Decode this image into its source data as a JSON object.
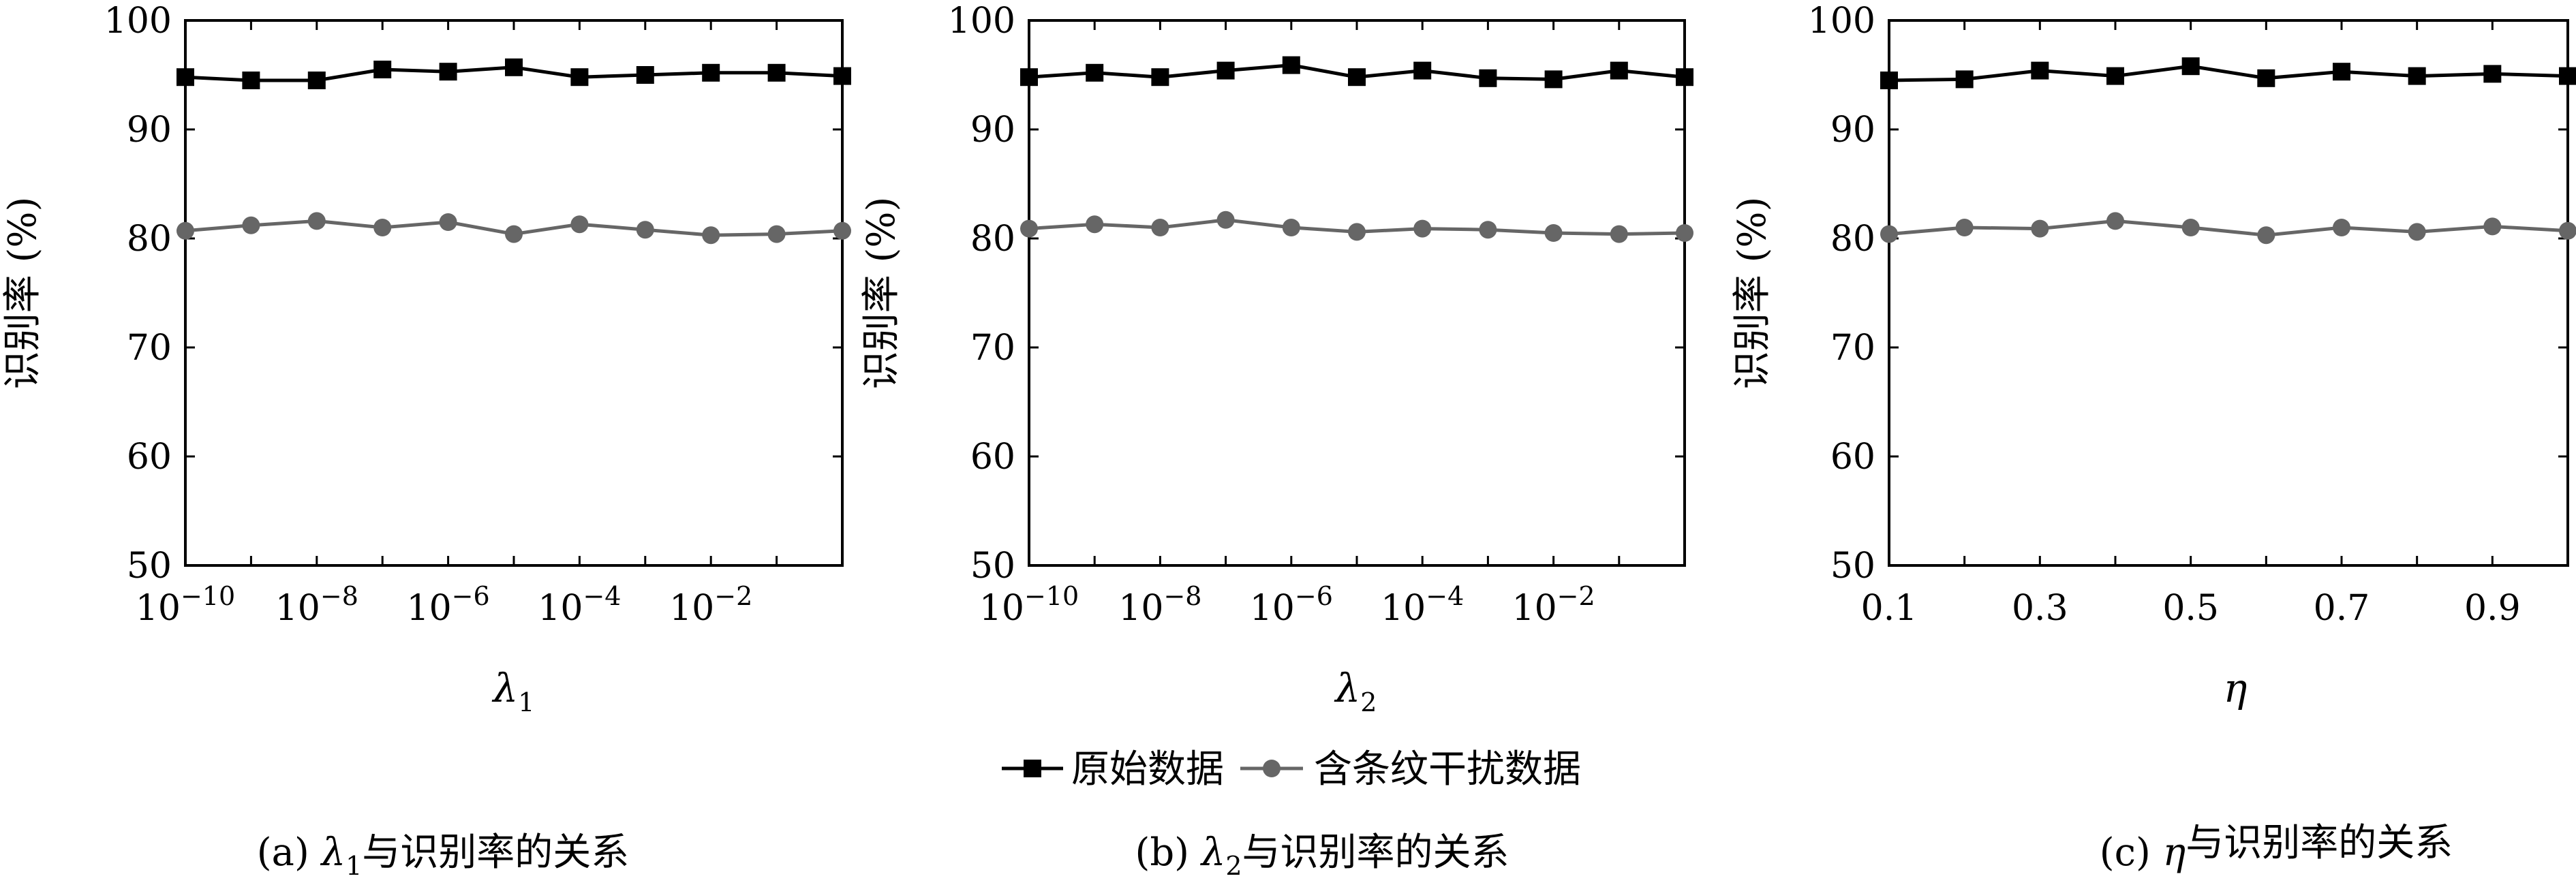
{
  "legend": {
    "original": "原始数据",
    "noisy": "含条纹干扰数据"
  },
  "colors": {
    "original": "#000000",
    "noisy": "#666666"
  },
  "chart_data": [
    {
      "type": "line",
      "caption_prefix": "(a) ",
      "caption_suffix": "与识别率的关系",
      "xlabel_base": "λ",
      "xlabel_sub": "1",
      "ylabel": "识别率 (%)",
      "ylim": [
        50,
        100
      ],
      "yticks": [
        "50",
        "60",
        "70",
        "80",
        "90",
        "100"
      ],
      "xticks": [
        {
          "base": "10",
          "exp": "−10",
          "index": 0
        },
        {
          "base": "10",
          "exp": "−8",
          "index": 2
        },
        {
          "base": "10",
          "exp": "−6",
          "index": 4
        },
        {
          "base": "10",
          "exp": "−4",
          "index": 6
        },
        {
          "base": "10",
          "exp": "−2",
          "index": 8
        }
      ],
      "x": [
        "1e-10",
        "1e-9",
        "1e-8",
        "1e-7",
        "1e-6",
        "1e-5",
        "1e-4",
        "1e-3",
        "1e-2",
        "1e-1",
        "1"
      ],
      "series": [
        {
          "name": "原始数据",
          "values": [
            94.8,
            94.5,
            94.5,
            95.5,
            95.3,
            95.7,
            94.8,
            95.0,
            95.2,
            95.2,
            94.9
          ]
        },
        {
          "name": "含条纹干扰数据",
          "values": [
            80.7,
            81.2,
            81.6,
            81.0,
            81.5,
            80.4,
            81.3,
            80.8,
            80.3,
            80.4,
            80.7
          ]
        }
      ]
    },
    {
      "type": "line",
      "caption_prefix": "(b) ",
      "caption_suffix": "与识别率的关系",
      "xlabel_base": "λ",
      "xlabel_sub": "2",
      "ylabel": "识别率 (%)",
      "ylim": [
        50,
        100
      ],
      "yticks": [
        "50",
        "60",
        "70",
        "80",
        "90",
        "100"
      ],
      "xticks": [
        {
          "base": "10",
          "exp": "−10",
          "index": 0
        },
        {
          "base": "10",
          "exp": "−8",
          "index": 2
        },
        {
          "base": "10",
          "exp": "−6",
          "index": 4
        },
        {
          "base": "10",
          "exp": "−4",
          "index": 6
        },
        {
          "base": "10",
          "exp": "−2",
          "index": 8
        }
      ],
      "x": [
        "1e-10",
        "1e-9",
        "1e-8",
        "1e-7",
        "1e-6",
        "1e-5",
        "1e-4",
        "1e-3",
        "1e-2",
        "1e-1",
        "1"
      ],
      "series": [
        {
          "name": "原始数据",
          "values": [
            94.8,
            95.2,
            94.8,
            95.4,
            95.9,
            94.8,
            95.4,
            94.7,
            94.6,
            95.4,
            94.8
          ]
        },
        {
          "name": "含条纹干扰数据",
          "values": [
            80.9,
            81.3,
            81.0,
            81.7,
            81.0,
            80.6,
            80.9,
            80.8,
            80.5,
            80.4,
            80.5
          ]
        }
      ]
    },
    {
      "type": "line",
      "caption_prefix": "(c) ",
      "caption_suffix": "与识别率的关系",
      "xlabel_base": "η",
      "xlabel_sub": "",
      "ylabel": "识别率 (%)",
      "ylim": [
        50,
        100
      ],
      "yticks": [
        "50",
        "60",
        "70",
        "80",
        "90",
        "100"
      ],
      "xticks": [
        {
          "base": "0.1",
          "exp": "",
          "index": 0
        },
        {
          "base": "0.3",
          "exp": "",
          "index": 2
        },
        {
          "base": "0.5",
          "exp": "",
          "index": 4
        },
        {
          "base": "0.7",
          "exp": "",
          "index": 6
        },
        {
          "base": "0.9",
          "exp": "",
          "index": 8
        }
      ],
      "x": [
        "0.1",
        "0.2",
        "0.3",
        "0.4",
        "0.5",
        "0.6",
        "0.7",
        "0.8",
        "0.9",
        "1.0"
      ],
      "series": [
        {
          "name": "原始数据",
          "values": [
            94.5,
            94.6,
            95.4,
            94.9,
            95.8,
            94.7,
            95.3,
            94.9,
            95.1,
            94.9
          ]
        },
        {
          "name": "含条纹干扰数据",
          "values": [
            80.4,
            81.0,
            80.9,
            81.6,
            81.0,
            80.3,
            81.0,
            80.6,
            81.1,
            80.7
          ]
        }
      ]
    }
  ]
}
